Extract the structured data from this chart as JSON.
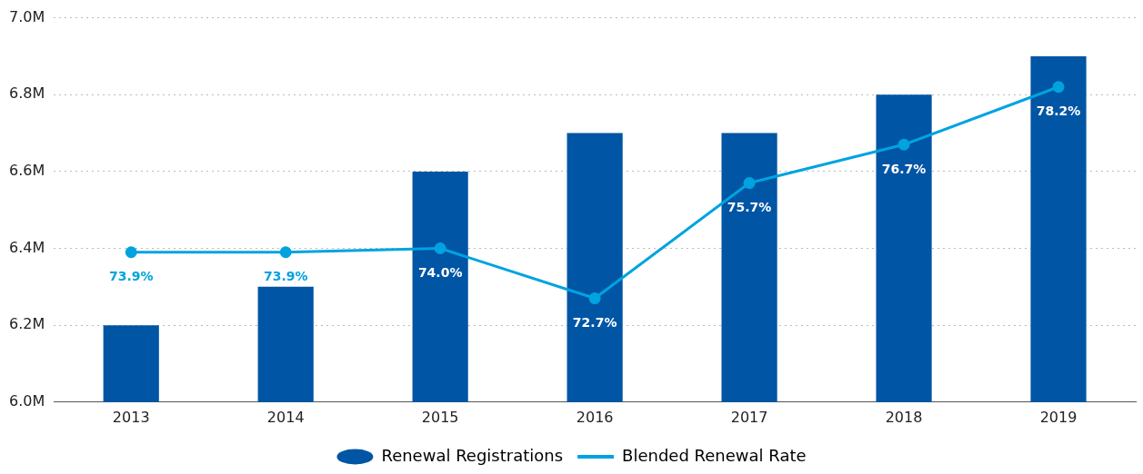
{
  "chart_data": {
    "type": "bar",
    "categories": [
      "2013",
      "2014",
      "2015",
      "2016",
      "2017",
      "2018",
      "2019"
    ],
    "series": [
      {
        "name": "Renewal Registrations",
        "color": "#0055a5",
        "values": [
          6.2,
          6.3,
          6.6,
          6.7,
          6.7,
          6.8,
          6.9
        ]
      },
      {
        "name": "Blended Renewal Rate",
        "type": "line",
        "axis": "y2",
        "color": "#00a3e0",
        "marker": "circle",
        "values": [
          73.9,
          73.9,
          74.0,
          72.7,
          75.7,
          76.7,
          78.2
        ],
        "value_labels": [
          "73.9%",
          "73.9%",
          "74.0%",
          "72.7%",
          "75.7%",
          "76.7%",
          "78.2%"
        ]
      }
    ],
    "ylim": [
      6.0,
      7.0
    ],
    "yticks": [
      {
        "value": 6.0,
        "label": "6.0M"
      },
      {
        "value": 6.2,
        "label": "6.2M"
      },
      {
        "value": 6.4,
        "label": "6.4M"
      },
      {
        "value": 6.6,
        "label": "6.6M"
      },
      {
        "value": 6.8,
        "label": "6.8M"
      },
      {
        "value": 7.0,
        "label": "7.0M"
      }
    ],
    "y2lim": [
      70,
      80
    ],
    "grid": "y",
    "legend": "bottom"
  }
}
